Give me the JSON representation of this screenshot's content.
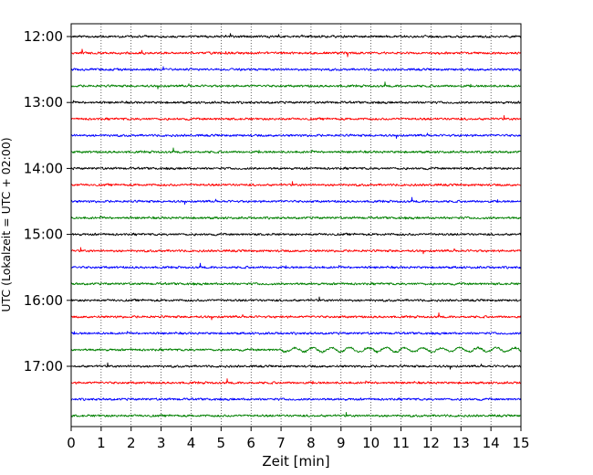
{
  "chart_data": {
    "type": "line",
    "title": "",
    "xlabel": "Zeit  [min]",
    "ylabel": "UTC (Lokalzeit = UTC + 02:00)",
    "xlim": [
      0,
      15
    ],
    "x_ticks": [
      "0",
      "1",
      "2",
      "3",
      "4",
      "5",
      "6",
      "7",
      "8",
      "9",
      "10",
      "11",
      "12",
      "13",
      "14",
      "15"
    ],
    "y_ticks": [
      "12:00",
      "13:00",
      "14:00",
      "15:00",
      "16:00",
      "17:00"
    ],
    "vertical_grid": true,
    "grid_style": "dotted",
    "trace_interval_minutes": 15,
    "trace_colors": [
      "#000000",
      "#ff0000",
      "#0000ff",
      "#008000"
    ],
    "traces": [
      {
        "start": "12:00",
        "color": "#000000"
      },
      {
        "start": "12:15",
        "color": "#ff0000"
      },
      {
        "start": "12:30",
        "color": "#0000ff"
      },
      {
        "start": "12:45",
        "color": "#008000"
      },
      {
        "start": "13:00",
        "color": "#000000"
      },
      {
        "start": "13:15",
        "color": "#ff0000"
      },
      {
        "start": "13:30",
        "color": "#0000ff"
      },
      {
        "start": "13:45",
        "color": "#008000"
      },
      {
        "start": "14:00",
        "color": "#000000"
      },
      {
        "start": "14:15",
        "color": "#ff0000"
      },
      {
        "start": "14:30",
        "color": "#0000ff"
      },
      {
        "start": "14:45",
        "color": "#008000"
      },
      {
        "start": "15:00",
        "color": "#000000"
      },
      {
        "start": "15:15",
        "color": "#ff0000"
      },
      {
        "start": "15:30",
        "color": "#0000ff"
      },
      {
        "start": "15:45",
        "color": "#008000"
      },
      {
        "start": "16:00",
        "color": "#000000"
      },
      {
        "start": "16:15",
        "color": "#ff0000"
      },
      {
        "start": "16:30",
        "color": "#0000ff"
      },
      {
        "start": "16:45",
        "color": "#008000"
      },
      {
        "start": "17:00",
        "color": "#000000"
      },
      {
        "start": "17:15",
        "color": "#ff0000"
      },
      {
        "start": "17:30",
        "color": "#0000ff"
      },
      {
        "start": "17:45",
        "color": "#008000"
      }
    ]
  }
}
